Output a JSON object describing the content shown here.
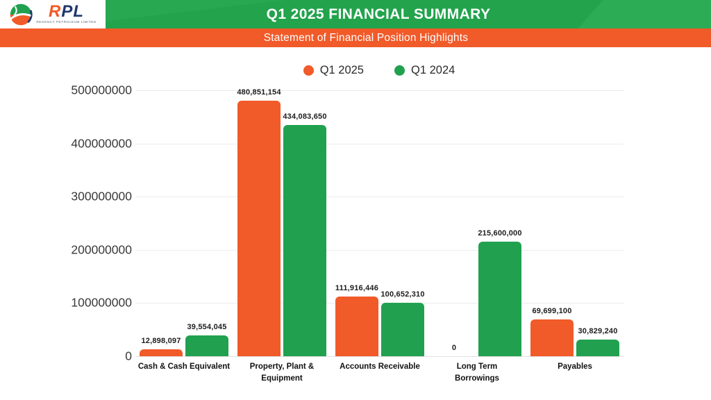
{
  "logo": {
    "brand_part1": "R",
    "brand_part2": "PL",
    "company": "REGENCY PETROLEUM LIMITED"
  },
  "header": {
    "title": "Q1 2025 FINANCIAL SUMMARY",
    "subtitle": "Statement of Financial Position Highlights"
  },
  "colors": {
    "orange": "#F15A29",
    "green": "#21A150",
    "header_green": "#22A34C",
    "header_green_light": "#2CAD55",
    "grid": "#ECECEC",
    "label_text": "#1C1C1C"
  },
  "chart_data": {
    "type": "bar",
    "title": "Q1 2025 FINANCIAL SUMMARY",
    "subtitle": "Statement of Financial Position Highlights",
    "categories": [
      "Cash & Cash Equivalent",
      "Property, Plant &\nEquipment",
      "Accounts Receivable",
      "Long Term\nBorrowings",
      "Payables"
    ],
    "series": [
      {
        "name": "Q1 2025",
        "color": "#F15A29",
        "values": [
          12898097,
          480851154,
          111916446,
          0,
          69699100
        ],
        "value_labels": [
          "12,898,097",
          "480,851,154",
          "111,916,446",
          "0",
          "69,699,100"
        ]
      },
      {
        "name": "Q1 2024",
        "color": "#21A150",
        "values": [
          39554045,
          434083650,
          100652310,
          215600000,
          30829240
        ],
        "value_labels": [
          "39,554,045",
          "434,083,650",
          "100,652,310",
          "215,600,000",
          "30,829,240"
        ]
      }
    ],
    "xlabel": "",
    "ylabel": "",
    "ylim": [
      0,
      500000000
    ],
    "y_ticks": [
      "500000000",
      "400000000",
      "300000000",
      "200000000",
      "100000000",
      "0"
    ],
    "grid": "horizontal",
    "legend_position": "top-center"
  }
}
